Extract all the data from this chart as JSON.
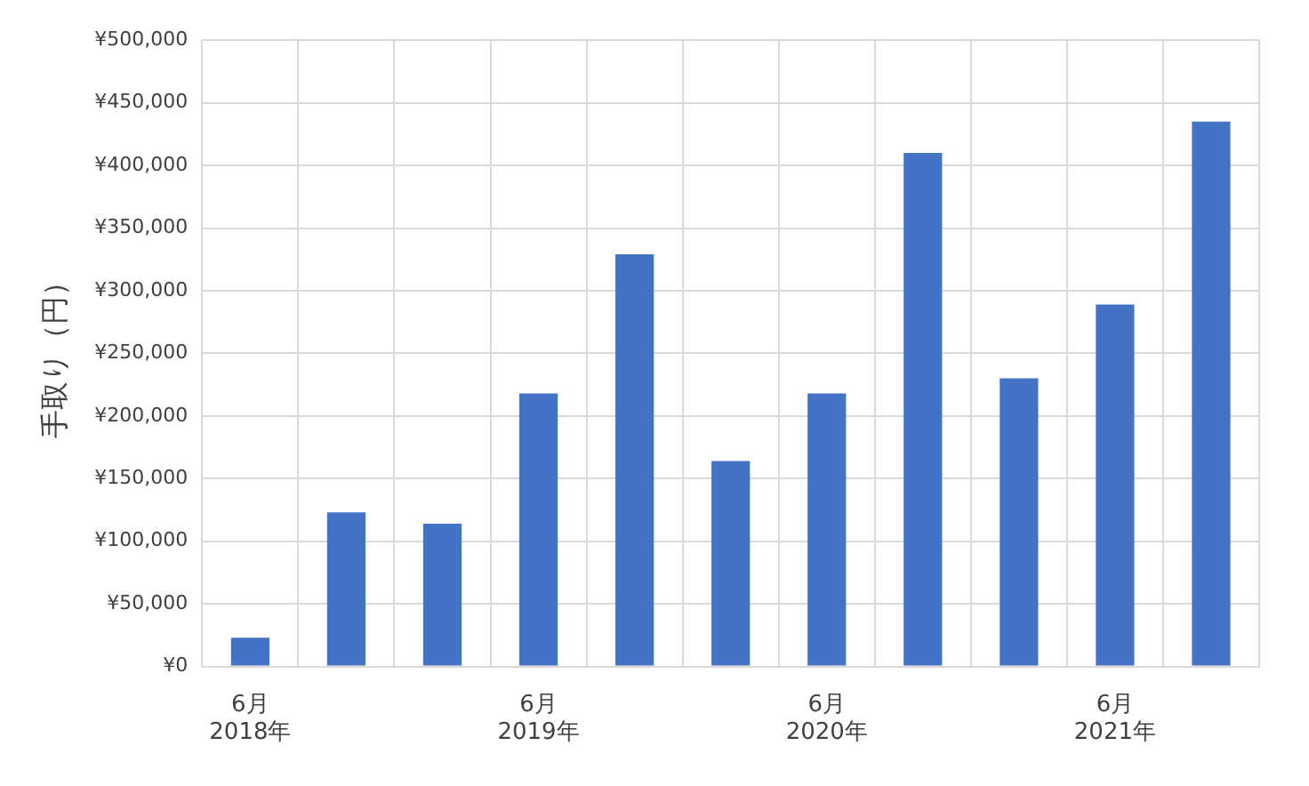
{
  "chart_data": {
    "type": "bar",
    "ylabel": "手取り（円）",
    "categories": [
      "6月\n2018年",
      null,
      null,
      "6月\n2019年",
      null,
      null,
      "6月\n2020年",
      null,
      null,
      "6月\n2021年",
      null
    ],
    "values": [
      23000,
      123000,
      114000,
      218000,
      329000,
      164000,
      218000,
      410000,
      230000,
      289000,
      435000
    ],
    "color": "#4472c4",
    "ylim": [
      0,
      500000
    ],
    "yticks": [
      {
        "value": 0,
        "label": "¥0"
      },
      {
        "value": 50000,
        "label": "¥50,000"
      },
      {
        "value": 100000,
        "label": "¥100,000"
      },
      {
        "value": 150000,
        "label": "¥150,000"
      },
      {
        "value": 200000,
        "label": "¥200,000"
      },
      {
        "value": 250000,
        "label": "¥250,000"
      },
      {
        "value": 300000,
        "label": "¥300,000"
      },
      {
        "value": 350000,
        "label": "¥350,000"
      },
      {
        "value": 400000,
        "label": "¥400,000"
      },
      {
        "value": 450000,
        "label": "¥450,000"
      },
      {
        "value": 500000,
        "label": "¥500,000"
      }
    ],
    "grid": true,
    "legend": false
  }
}
